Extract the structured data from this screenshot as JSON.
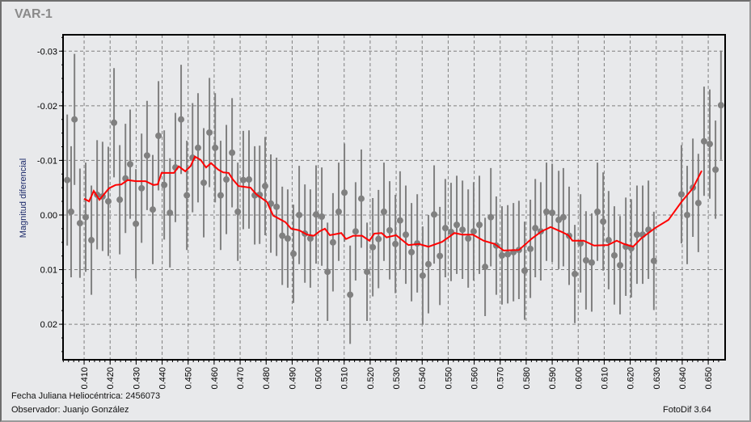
{
  "title": "VAR-1",
  "footer": {
    "jd_label": "Fecha Juliana Heliocéntrica: 2456073",
    "observer_label": "Observador: Juanjo González",
    "software": "FotoDif 3.64"
  },
  "chart_data": {
    "type": "scatter",
    "title": "VAR-1",
    "xlabel": "",
    "ylabel": "Magnitud diferencial",
    "xlim": [
      0.4019,
      0.6565
    ],
    "ylim": [
      0.0265,
      -0.033
    ],
    "y_inverted": true,
    "grid": true,
    "x_ticks": [
      "0.410",
      "0.420",
      "0.430",
      "0.440",
      "0.450",
      "0.460",
      "0.470",
      "0.480",
      "0.490",
      "0.500",
      "0.510",
      "0.520",
      "0.530",
      "0.540",
      "0.550",
      "0.560",
      "0.570",
      "0.580",
      "0.590",
      "0.600",
      "0.610",
      "0.620",
      "0.630",
      "0.640",
      "0.650"
    ],
    "y_ticks": [
      "-0.03",
      "-0.02",
      "-0.01",
      "0.00",
      "0.01",
      "0.02"
    ],
    "colors": {
      "points": "#808080",
      "error_bars": "#808080",
      "smooth_line": "#ff0000",
      "grid": "#808080",
      "background": "#e8e9eb"
    },
    "points": [
      [
        0.4035,
        -0.0064,
        0.012
      ],
      [
        0.405,
        -0.0006,
        0.012
      ],
      [
        0.4063,
        -0.0175,
        0.012
      ],
      [
        0.4084,
        0.0015,
        0.01
      ],
      [
        0.4106,
        0.0004,
        0.01
      ],
      [
        0.4128,
        0.0046,
        0.01
      ],
      [
        0.415,
        -0.0037,
        0.01
      ],
      [
        0.4171,
        -0.0034,
        0.01
      ],
      [
        0.4193,
        -0.0025,
        0.01
      ],
      [
        0.4215,
        -0.0169,
        0.01
      ],
      [
        0.4237,
        -0.0028,
        0.01
      ],
      [
        0.4259,
        -0.0067,
        0.01
      ],
      [
        0.4277,
        -0.0093,
        0.01
      ],
      [
        0.4299,
        0.0016,
        0.01
      ],
      [
        0.4321,
        -0.0049,
        0.01
      ],
      [
        0.4342,
        -0.0109,
        0.01
      ],
      [
        0.4364,
        -0.001,
        0.01
      ],
      [
        0.4386,
        -0.0145,
        0.01
      ],
      [
        0.4408,
        -0.0055,
        0.01
      ],
      [
        0.443,
        -0.0004,
        0.01
      ],
      [
        0.4451,
        -0.0087,
        0.01
      ],
      [
        0.4473,
        -0.0175,
        0.01
      ],
      [
        0.4495,
        -0.0036,
        0.01
      ],
      [
        0.4517,
        -0.0105,
        0.01
      ],
      [
        0.4538,
        -0.0123,
        0.01
      ],
      [
        0.456,
        -0.0059,
        0.01
      ],
      [
        0.4582,
        -0.0151,
        0.01
      ],
      [
        0.4604,
        -0.0123,
        0.01
      ],
      [
        0.4625,
        -0.0036,
        0.01
      ],
      [
        0.4647,
        -0.0065,
        0.01
      ],
      [
        0.4669,
        -0.0114,
        0.01
      ],
      [
        0.4691,
        -0.0006,
        0.009
      ],
      [
        0.4712,
        -0.0064,
        0.009
      ],
      [
        0.4734,
        -0.0065,
        0.009
      ],
      [
        0.4756,
        -0.0036,
        0.009
      ],
      [
        0.4775,
        -0.0037,
        0.009
      ],
      [
        0.4796,
        -0.0053,
        0.009
      ],
      [
        0.4818,
        -0.0021,
        0.009
      ],
      [
        0.484,
        -0.0015,
        0.009
      ],
      [
        0.4862,
        0.0038,
        0.009
      ],
      [
        0.4883,
        0.0043,
        0.009
      ],
      [
        0.4905,
        0.0071,
        0.009
      ],
      [
        0.4927,
        0.0,
        0.009
      ],
      [
        0.4949,
        0.0034,
        0.009
      ],
      [
        0.497,
        0.0043,
        0.009
      ],
      [
        0.4992,
        -0.0001,
        0.009
      ],
      [
        0.5014,
        0.0003,
        0.009
      ],
      [
        0.5036,
        0.0104,
        0.009
      ],
      [
        0.5057,
        0.005,
        0.009
      ],
      [
        0.5079,
        -0.0006,
        0.009
      ],
      [
        0.5101,
        -0.0041,
        0.009
      ],
      [
        0.5123,
        0.0146,
        0.009
      ],
      [
        0.5144,
        0.003,
        0.009
      ],
      [
        0.5166,
        -0.003,
        0.009
      ],
      [
        0.5188,
        0.0104,
        0.009
      ],
      [
        0.521,
        0.0059,
        0.009
      ],
      [
        0.5232,
        0.0044,
        0.009
      ],
      [
        0.5253,
        -0.0006,
        0.009
      ],
      [
        0.5275,
        0.0028,
        0.009
      ],
      [
        0.5297,
        0.0053,
        0.009
      ],
      [
        0.5315,
        0.001,
        0.009
      ],
      [
        0.5337,
        0.0036,
        0.009
      ],
      [
        0.5359,
        0.0068,
        0.009
      ],
      [
        0.5381,
        0.0052,
        0.009
      ],
      [
        0.5402,
        0.0111,
        0.009
      ],
      [
        0.5424,
        0.009,
        0.009
      ],
      [
        0.5446,
        -0.0001,
        0.009
      ],
      [
        0.5468,
        0.0075,
        0.009
      ],
      [
        0.5489,
        0.0024,
        0.009
      ],
      [
        0.5511,
        0.0031,
        0.009
      ],
      [
        0.5533,
        0.0018,
        0.009
      ],
      [
        0.5555,
        0.0027,
        0.009
      ],
      [
        0.5577,
        0.0043,
        0.009
      ],
      [
        0.5598,
        0.003,
        0.009
      ],
      [
        0.562,
        0.0018,
        0.009
      ],
      [
        0.5642,
        0.0095,
        0.009
      ],
      [
        0.5664,
        0.0004,
        0.009
      ],
      [
        0.5685,
        0.0056,
        0.009
      ],
      [
        0.5707,
        0.0074,
        0.009
      ],
      [
        0.5729,
        0.0072,
        0.009
      ],
      [
        0.5751,
        0.0068,
        0.009
      ],
      [
        0.5772,
        0.0064,
        0.009
      ],
      [
        0.5794,
        0.0102,
        0.009
      ],
      [
        0.5816,
        0.0062,
        0.009
      ],
      [
        0.5835,
        0.0024,
        0.009
      ],
      [
        0.5856,
        0.003,
        0.009
      ],
      [
        0.5878,
        -0.0006,
        0.009
      ],
      [
        0.59,
        -0.0004,
        0.009
      ],
      [
        0.5925,
        0.0009,
        0.009
      ],
      [
        0.5943,
        0.0004,
        0.009
      ],
      [
        0.5965,
        0.0038,
        0.009
      ],
      [
        0.5987,
        0.0108,
        0.009
      ],
      [
        0.6009,
        0.0052,
        0.009
      ],
      [
        0.603,
        0.0083,
        0.009
      ],
      [
        0.6052,
        0.0087,
        0.009
      ],
      [
        0.6074,
        -0.0006,
        0.009
      ],
      [
        0.6096,
        0.0012,
        0.009
      ],
      [
        0.6117,
        0.0046,
        0.009
      ],
      [
        0.6139,
        0.0074,
        0.009
      ],
      [
        0.6161,
        0.0092,
        0.009
      ],
      [
        0.6183,
        0.0058,
        0.009
      ],
      [
        0.6204,
        0.0061,
        0.009
      ],
      [
        0.6226,
        0.0036,
        0.009
      ],
      [
        0.6248,
        0.0036,
        0.009
      ],
      [
        0.627,
        0.0027,
        0.009
      ],
      [
        0.6291,
        0.0084,
        0.009
      ],
      [
        0.6397,
        -0.0038,
        0.009
      ],
      [
        0.6419,
        0.0,
        0.009
      ],
      [
        0.6441,
        -0.005,
        0.009
      ],
      [
        0.6462,
        -0.0022,
        0.009
      ],
      [
        0.6484,
        -0.0135,
        0.01
      ],
      [
        0.6506,
        -0.013,
        0.01
      ],
      [
        0.6528,
        -0.0083,
        0.009
      ],
      [
        0.6549,
        -0.0201,
        0.01
      ]
    ],
    "smooth_line": [
      [
        0.41,
        -0.003
      ],
      [
        0.4119,
        -0.0025
      ],
      [
        0.4137,
        -0.0044
      ],
      [
        0.4159,
        -0.0028
      ],
      [
        0.4196,
        -0.0049
      ],
      [
        0.4221,
        -0.0055
      ],
      [
        0.4243,
        -0.0056
      ],
      [
        0.4268,
        -0.0064
      ],
      [
        0.4299,
        -0.0062
      ],
      [
        0.4336,
        -0.0062
      ],
      [
        0.4367,
        -0.0055
      ],
      [
        0.4383,
        -0.0056
      ],
      [
        0.4398,
        -0.0077
      ],
      [
        0.4445,
        -0.0077
      ],
      [
        0.4464,
        -0.0089
      ],
      [
        0.4489,
        -0.008
      ],
      [
        0.451,
        -0.009
      ],
      [
        0.4526,
        -0.0107
      ],
      [
        0.4548,
        -0.0101
      ],
      [
        0.4569,
        -0.0087
      ],
      [
        0.4588,
        -0.0095
      ],
      [
        0.4616,
        -0.0083
      ],
      [
        0.4635,
        -0.0078
      ],
      [
        0.4656,
        -0.0077
      ],
      [
        0.4672,
        -0.0065
      ],
      [
        0.4694,
        -0.0053
      ],
      [
        0.474,
        -0.005
      ],
      [
        0.4762,
        -0.0038
      ],
      [
        0.4803,
        -0.0024
      ],
      [
        0.4827,
        0.0001
      ],
      [
        0.4874,
        0.0013
      ],
      [
        0.4896,
        0.0025
      ],
      [
        0.4927,
        0.0028
      ],
      [
        0.4958,
        0.0036
      ],
      [
        0.4983,
        0.0038
      ],
      [
        0.5005,
        0.003
      ],
      [
        0.5026,
        0.0025
      ],
      [
        0.5045,
        0.0037
      ],
      [
        0.5089,
        0.0033
      ],
      [
        0.5107,
        0.0044
      ],
      [
        0.5135,
        0.0038
      ],
      [
        0.5169,
        0.0038
      ],
      [
        0.5197,
        0.0047
      ],
      [
        0.5216,
        0.0034
      ],
      [
        0.5244,
        0.0033
      ],
      [
        0.5263,
        0.0041
      ],
      [
        0.53,
        0.0037
      ],
      [
        0.5347,
        0.0055
      ],
      [
        0.5387,
        0.0053
      ],
      [
        0.5424,
        0.0058
      ],
      [
        0.5477,
        0.0049
      ],
      [
        0.5524,
        0.0033
      ],
      [
        0.5555,
        0.0036
      ],
      [
        0.5595,
        0.0036
      ],
      [
        0.5636,
        0.0047
      ],
      [
        0.5679,
        0.0053
      ],
      [
        0.5713,
        0.0065
      ],
      [
        0.5772,
        0.0064
      ],
      [
        0.5822,
        0.0043
      ],
      [
        0.5859,
        0.003
      ],
      [
        0.5894,
        0.0022
      ],
      [
        0.5937,
        0.0031
      ],
      [
        0.5962,
        0.0037
      ],
      [
        0.5978,
        0.0047
      ],
      [
        0.6021,
        0.0047
      ],
      [
        0.6061,
        0.0056
      ],
      [
        0.6114,
        0.0055
      ],
      [
        0.6148,
        0.0047
      ],
      [
        0.6176,
        0.0053
      ],
      [
        0.6211,
        0.0058
      ],
      [
        0.6242,
        0.0043
      ],
      [
        0.6295,
        0.0024
      ],
      [
        0.6347,
        0.0009
      ],
      [
        0.6397,
        -0.0024
      ],
      [
        0.6441,
        -0.0049
      ],
      [
        0.6475,
        -0.0081
      ]
    ]
  }
}
